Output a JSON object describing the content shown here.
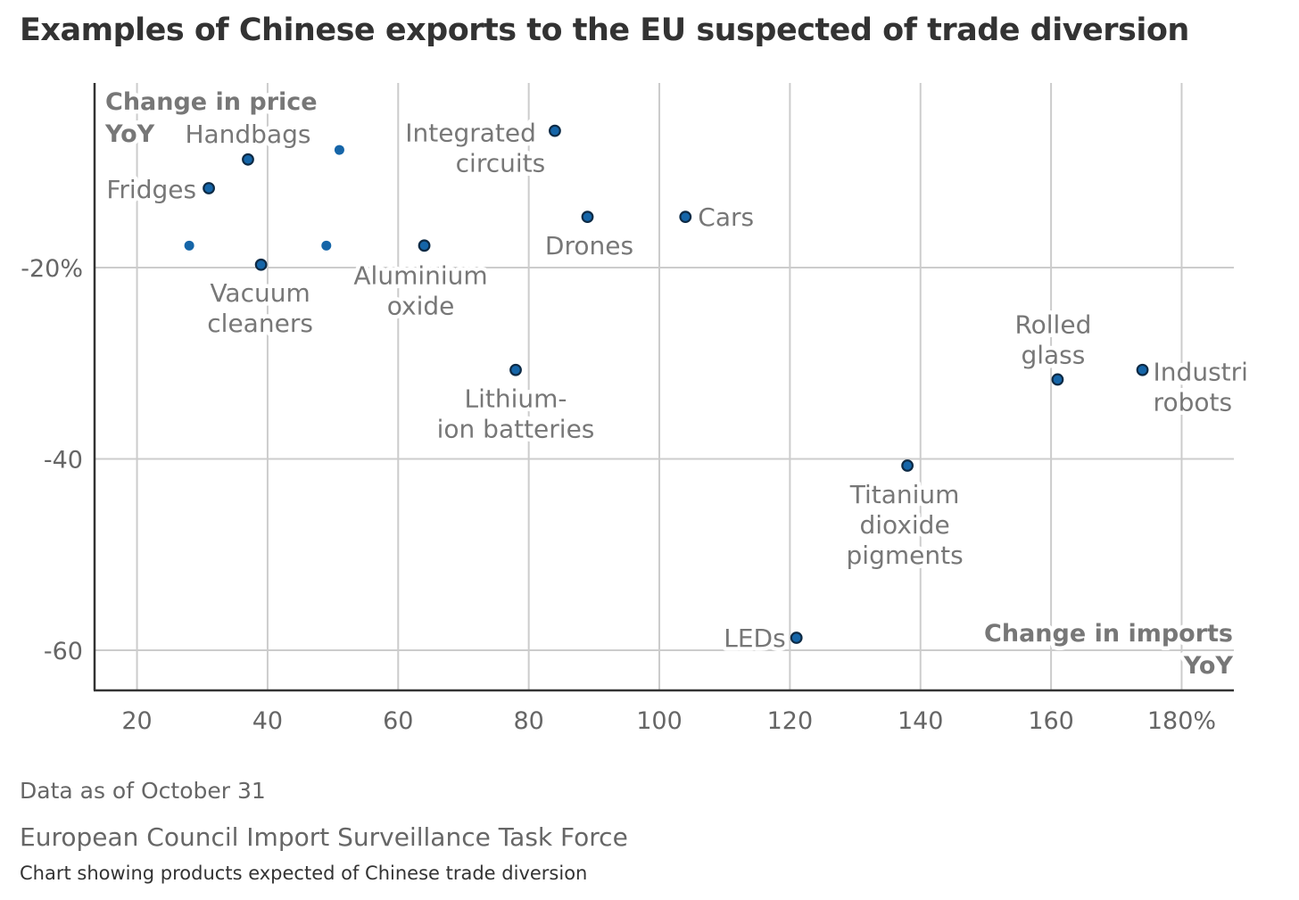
{
  "title": "Examples of Chinese exports to the EU suspected of trade diversion",
  "footnotes": {
    "date": "Data as of October 31",
    "source": "European Council Import Surveillance Task Force",
    "caption": "Chart showing products expected of Chinese trade diversion"
  },
  "chart_data": {
    "type": "scatter",
    "title": "Examples of Chinese exports to the EU suspected of trade diversion",
    "xlabel": [
      "Change in imports",
      "YoY"
    ],
    "ylabel": [
      "Change in price",
      "YoY"
    ],
    "xlim": [
      13.5,
      188
    ],
    "ylim": [
      -64.2,
      -0.7
    ],
    "x_ticks": [
      20,
      40,
      60,
      80,
      100,
      120,
      140,
      160,
      180
    ],
    "x_tick_labels": [
      "20",
      "40",
      "60",
      "80",
      "100",
      "120",
      "140",
      "160",
      "180%"
    ],
    "y_ticks": [
      -20,
      -40,
      -60
    ],
    "y_tick_labels": [
      "-20%",
      "-40",
      "-60"
    ],
    "grid": true,
    "colors": {
      "point": "#1565a8",
      "point_outline": "#0d2a45",
      "grid": "#cccccc",
      "axis": "#333333"
    },
    "points": [
      {
        "x": 37,
        "y": -8.7,
        "label": [
          "Handbags"
        ]
      },
      {
        "x": 31,
        "y": -11.7,
        "label": [
          "Fridges"
        ]
      },
      {
        "x": 84,
        "y": -5.7,
        "label": [
          "Integrated",
          "circuits"
        ]
      },
      {
        "x": 89,
        "y": -14.7,
        "label": [
          "Drones"
        ]
      },
      {
        "x": 104,
        "y": -14.7,
        "label": [
          "Cars"
        ]
      },
      {
        "x": 64,
        "y": -17.7,
        "label": [
          "Aluminium",
          "oxide"
        ]
      },
      {
        "x": 39,
        "y": -19.7,
        "label": [
          "Vacuum",
          "cleaners"
        ]
      },
      {
        "x": 78,
        "y": -30.7,
        "label": [
          "Lithium-",
          "ion batteries"
        ]
      },
      {
        "x": 161,
        "y": -31.7,
        "label": [
          "Rolled",
          "glass"
        ]
      },
      {
        "x": 174,
        "y": -30.7,
        "label": [
          "Industri",
          "robots"
        ]
      },
      {
        "x": 138,
        "y": -40.7,
        "label": [
          "Titanium",
          "dioxide",
          "pigments"
        ]
      },
      {
        "x": 121,
        "y": -58.7,
        "label": [
          "LEDs"
        ]
      },
      {
        "x": 28,
        "y": -17.7,
        "label": []
      },
      {
        "x": 49,
        "y": -17.7,
        "label": []
      },
      {
        "x": 51,
        "y": -7.7,
        "label": []
      }
    ]
  }
}
